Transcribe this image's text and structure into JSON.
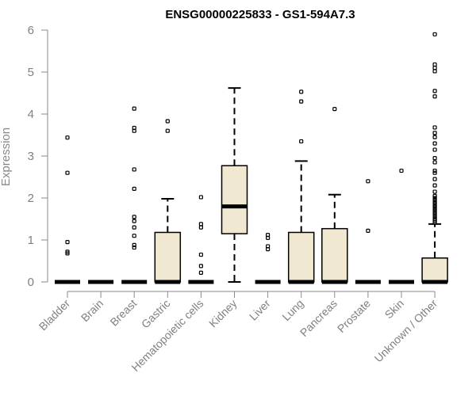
{
  "chart_data": {
    "type": "boxplot",
    "title": "ENSG00000225833 - GS1-594A7.3",
    "ylabel": "Expression",
    "xlabel": "",
    "ylim": [
      0,
      6
    ],
    "yticks": [
      0,
      1,
      2,
      3,
      4,
      5,
      6
    ],
    "box_color": "#f0e8d0",
    "categories": [
      "Bladder",
      "Brain",
      "Breast",
      "Gastric",
      "Hematopoietic cells",
      "Kidney",
      "Liver",
      "Lung",
      "Pancreas",
      "Prostate",
      "Skin",
      "Unknown / Other"
    ],
    "series": [
      {
        "q1": 0,
        "median": 0,
        "q3": 0,
        "whisker_low": 0,
        "whisker_high": 0,
        "outliers": [
          0.68,
          0.72,
          0.95,
          2.6,
          3.44
        ]
      },
      {
        "q1": 0,
        "median": 0,
        "q3": 0,
        "whisker_low": 0,
        "whisker_high": 0,
        "outliers": []
      },
      {
        "q1": 0,
        "median": 0,
        "q3": 0,
        "whisker_low": 0,
        "whisker_high": 0,
        "outliers": [
          0.82,
          0.88,
          1.1,
          1.3,
          1.45,
          1.55,
          2.22,
          2.68,
          3.6,
          3.67,
          4.13
        ]
      },
      {
        "q1": 0,
        "median": 0,
        "q3": 1.18,
        "whisker_low": 0,
        "whisker_high": 1.98,
        "outliers": [
          3.6,
          3.83
        ]
      },
      {
        "q1": 0,
        "median": 0,
        "q3": 0,
        "whisker_low": 0,
        "whisker_high": 0,
        "outliers": [
          0.22,
          0.38,
          0.65,
          1.3,
          1.38,
          2.02
        ]
      },
      {
        "q1": 1.15,
        "median": 1.8,
        "q3": 2.77,
        "whisker_low": 0,
        "whisker_high": 4.62,
        "outliers": []
      },
      {
        "q1": 0,
        "median": 0,
        "q3": 0,
        "whisker_low": 0,
        "whisker_high": 0,
        "outliers": [
          0.78,
          0.85,
          1.05,
          1.12
        ]
      },
      {
        "q1": 0,
        "median": 0,
        "q3": 1.18,
        "whisker_low": 0,
        "whisker_high": 2.88,
        "outliers": [
          3.35,
          4.3,
          4.53
        ]
      },
      {
        "q1": 0,
        "median": 0,
        "q3": 1.27,
        "whisker_low": 0,
        "whisker_high": 2.08,
        "outliers": [
          4.12
        ]
      },
      {
        "q1": 0,
        "median": 0,
        "q3": 0,
        "whisker_low": 0,
        "whisker_high": 0,
        "outliers": [
          1.22,
          2.4
        ]
      },
      {
        "q1": 0,
        "median": 0,
        "q3": 0,
        "whisker_low": 0,
        "whisker_high": 0,
        "outliers": [
          2.65
        ]
      },
      {
        "q1": 0,
        "median": 0,
        "q3": 0.57,
        "whisker_low": 0,
        "whisker_high": 1.38,
        "outliers": [
          1.42,
          1.46,
          1.5,
          1.55,
          1.6,
          1.65,
          1.7,
          1.75,
          1.8,
          1.85,
          1.9,
          1.95,
          2.0,
          2.05,
          2.15,
          2.3,
          2.45,
          2.6,
          2.65,
          2.85,
          2.95,
          3.15,
          3.3,
          3.45,
          3.55,
          3.68,
          4.42,
          4.55,
          5.02,
          5.1,
          5.18,
          5.9
        ]
      }
    ]
  }
}
